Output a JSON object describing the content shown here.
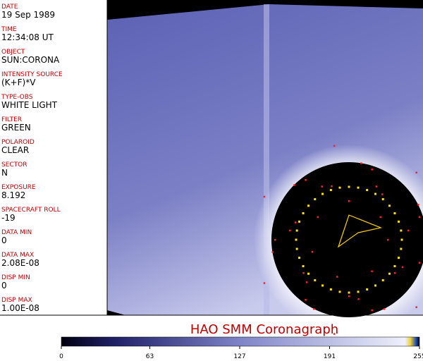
{
  "panel": {
    "fields": [
      {
        "label": "DATE",
        "value": "19 Sep 1989"
      },
      {
        "label": "TIME",
        "value": "12:34:08 UT"
      },
      {
        "label": "OBJECT",
        "value": "SUN:CORONA"
      },
      {
        "label": "INTENSITY SOURCE",
        "value": "(K+F)*V"
      },
      {
        "label": "TYPE-OBS",
        "value": "WHITE LIGHT"
      },
      {
        "label": "FILTER",
        "value": "GREEN"
      },
      {
        "label": "POLAROID",
        "value": "CLEAR"
      },
      {
        "label": "SECTOR",
        "value": "N"
      },
      {
        "label": "EXPOSURE",
        "value": "8.192"
      },
      {
        "label": "SPACECRAFT ROLL",
        "value": "-19"
      },
      {
        "label": "DATA MIN",
        "value": "0"
      },
      {
        "label": "DATA MAX",
        "value": "2.08E-08"
      },
      {
        "label": "DISP MIN",
        "value": "0"
      },
      {
        "label": "DISP MAX",
        "value": "1.00E-08"
      }
    ]
  },
  "colorbar": {
    "title": "HAO  SMM Coronagraph",
    "ticks": [
      0,
      63,
      127,
      191,
      255
    ]
  }
}
